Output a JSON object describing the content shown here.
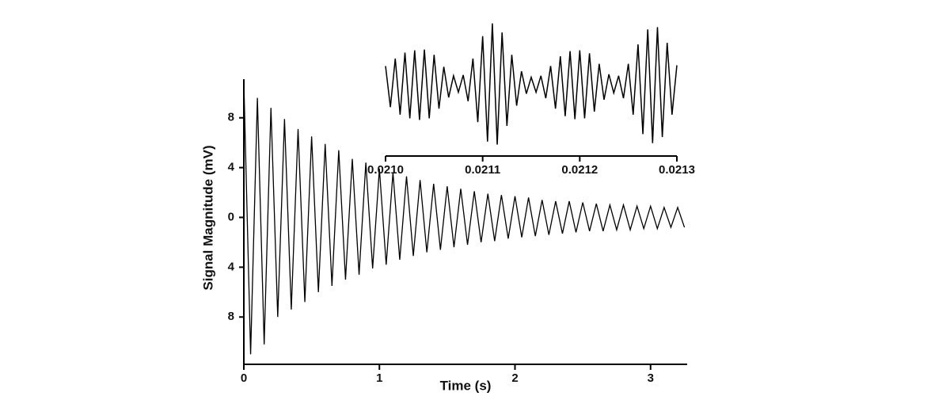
{
  "chart_data": [
    {
      "type": "line",
      "xlabel": "Time (s)",
      "ylabel": "Signal Magnitude (mV)",
      "xlim": [
        0,
        3.27
      ],
      "ylim": [
        -11.8,
        11.1
      ],
      "xticks": [
        0,
        1,
        2,
        3
      ],
      "yticks": [
        8,
        4,
        0,
        {
          "value": -4,
          "label": "4"
        },
        {
          "value": -8,
          "label": "8"
        }
      ],
      "color": "#000000",
      "x": [
        0,
        0.05,
        0.1,
        0.15,
        0.2,
        0.25,
        0.3,
        0.35,
        0.4,
        0.45,
        0.5,
        0.55,
        0.6,
        0.65,
        0.7,
        0.75,
        0.8,
        0.85,
        0.9,
        0.95,
        1,
        1.05,
        1.1,
        1.15,
        1.2,
        1.25,
        1.3,
        1.35,
        1.4,
        1.45,
        1.5,
        1.55,
        1.6,
        1.65,
        1.7,
        1.75,
        1.8,
        1.85,
        1.9,
        1.95,
        2,
        2.05,
        2.1,
        2.15,
        2.2,
        2.25,
        2.3,
        2.35,
        2.4,
        2.45,
        2.5,
        2.55,
        2.6,
        2.65,
        2.7,
        2.75,
        2.8,
        2.85,
        2.9,
        2.95,
        3,
        3.05,
        3.1,
        3.15,
        3.2,
        3.25
      ],
      "values": [
        10.9,
        -11.0,
        9.6,
        -10.2,
        8.8,
        -8.0,
        7.9,
        -7.4,
        7.1,
        -6.8,
        6.5,
        -6.0,
        5.9,
        -5.5,
        5.4,
        -5.0,
        4.7,
        -4.6,
        4.4,
        -4.1,
        3.9,
        -3.8,
        3.6,
        -3.4,
        3.3,
        -3.1,
        3.0,
        -2.8,
        2.7,
        -2.6,
        2.5,
        -2.4,
        2.3,
        -2.2,
        2.1,
        -2.0,
        1.9,
        -1.9,
        1.8,
        -1.7,
        1.7,
        -1.6,
        1.6,
        -1.5,
        1.4,
        -1.4,
        1.3,
        -1.3,
        1.3,
        -1.2,
        1.2,
        -1.1,
        1.1,
        -1.1,
        1.0,
        -1.0,
        1.0,
        -1.0,
        0.9,
        -0.9,
        0.9,
        -0.9,
        0.8,
        -0.8,
        0.8,
        -0.8
      ]
    },
    {
      "type": "line",
      "xlim": [
        0.021,
        0.0213
      ],
      "ylim": [
        -9,
        9
      ],
      "xticks": [
        {
          "value": 0.021,
          "label": "0.0210"
        },
        {
          "value": 0.0211,
          "label": "0.0211"
        },
        {
          "value": 0.0212,
          "label": "0.0212"
        },
        {
          "value": 0.0213,
          "label": "0.0213"
        }
      ],
      "color": "#000000",
      "x": [
        0.021,
        0.021005,
        0.02101,
        0.021015,
        0.02102,
        0.021025,
        0.02103,
        0.021035,
        0.02104,
        0.021045,
        0.02105,
        0.021055,
        0.02106,
        0.021065,
        0.02107,
        0.021075,
        0.02108,
        0.021085,
        0.02109,
        0.021095,
        0.0211,
        0.021105,
        0.02111,
        0.021115,
        0.02112,
        0.021125,
        0.02113,
        0.021135,
        0.02114,
        0.021145,
        0.02115,
        0.021155,
        0.02116,
        0.021165,
        0.02117,
        0.021175,
        0.02118,
        0.021185,
        0.02119,
        0.021195,
        0.0212,
        0.021205,
        0.02121,
        0.021215,
        0.02122,
        0.021225,
        0.02123,
        0.021235,
        0.02124,
        0.021245,
        0.02125,
        0.021255,
        0.02126,
        0.021265,
        0.02127,
        0.021275,
        0.02128,
        0.021285,
        0.02129,
        0.021295,
        0.0213
      ],
      "values": [
        2.5,
        -3,
        3.5,
        -4,
        4.3,
        -4.5,
        4.6,
        -4.7,
        4.7,
        -4.5,
        4,
        -3.2,
        2.4,
        -1.7,
        1.2,
        -1.0,
        1.3,
        -2.2,
        3.5,
        -5,
        6.5,
        -7.6,
        8.2,
        -8,
        7,
        -5.5,
        4,
        -2.8,
        1.8,
        -1.2,
        1.0,
        -1.0,
        1.2,
        -1.8,
        2.5,
        -3.2,
        3.8,
        -4.2,
        4.5,
        -4.6,
        4.6,
        -4.5,
        4.2,
        -3.6,
        2.8,
        -2,
        1.4,
        -1.1,
        1.2,
        -1.8,
        2.8,
        -4,
        5.4,
        -6.6,
        7.4,
        -7.8,
        7.7,
        -7,
        5.6,
        -4,
        2.6
      ]
    }
  ]
}
